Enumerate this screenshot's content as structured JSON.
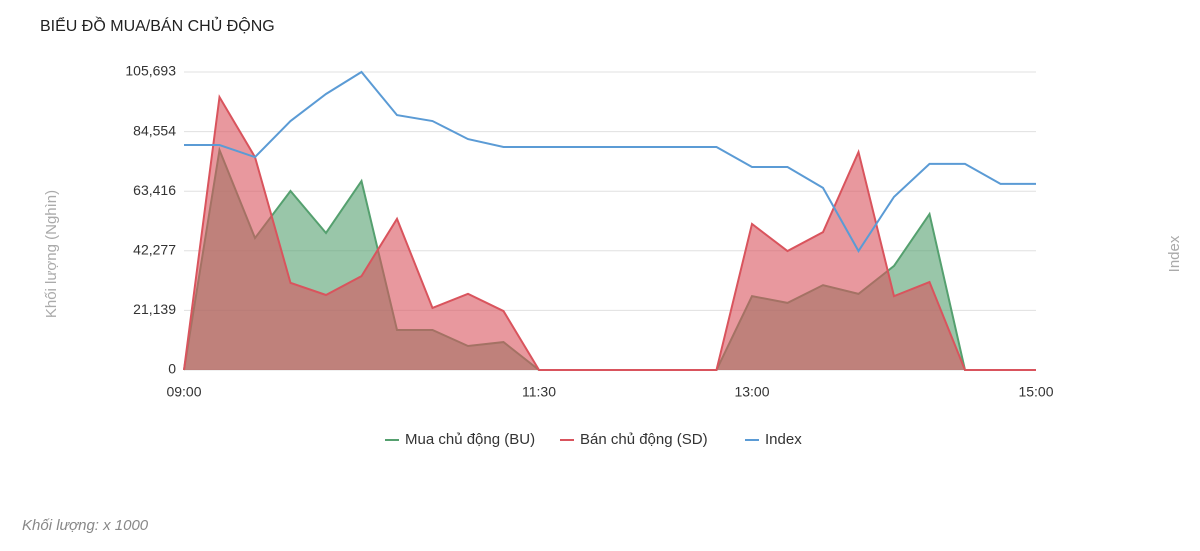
{
  "chart_data": {
    "type": "area",
    "title": "BIỂU ĐỒ MUA/BÁN CHỦ ĐỘNG",
    "y_label": "Khối lượng (Nghìn)",
    "y2_label": "Index",
    "footnote": "Khối lượng: x 1000",
    "categories": [
      "09:00",
      null,
      null,
      null,
      null,
      null,
      null,
      null,
      null,
      null,
      "11:30",
      null,
      null,
      null,
      null,
      null,
      "13:00",
      null,
      null,
      null,
      null,
      null,
      null,
      null,
      "15:00"
    ],
    "ylim": [
      0,
      105693
    ],
    "yticks": [
      0,
      {
        "value": 21139,
        "label": "21,139"
      },
      {
        "value": 42277,
        "label": "42,277"
      },
      {
        "value": 63416,
        "label": "63,416"
      },
      {
        "value": 84554,
        "label": "84,554"
      },
      {
        "value": 105693,
        "label": "105,693"
      }
    ],
    "grid": true,
    "series": [
      {
        "name": "Mua chủ động (BU)",
        "color": "#55a06f",
        "values": [
          0,
          78000,
          46800,
          63500,
          48600,
          67000,
          14200,
          14200,
          8500,
          9900,
          0,
          0,
          0,
          0,
          0,
          0,
          26200,
          23800,
          30100,
          27000,
          36900,
          55300,
          0,
          0,
          0
        ]
      },
      {
        "name": "Bán chủ động (SD)",
        "color": "#d9545d",
        "values": [
          0,
          96800,
          75500,
          30900,
          26600,
          33300,
          53600,
          22000,
          27000,
          20900,
          0,
          0,
          0,
          0,
          0,
          0,
          51800,
          42200,
          48900,
          77300,
          26200,
          31200,
          0,
          0,
          0
        ]
      },
      {
        "name": "Index",
        "color": "#5b9bd5",
        "line_only": true,
        "values": [
          79800,
          79800,
          75500,
          88300,
          97900,
          105700,
          90400,
          88300,
          81900,
          79100,
          79100,
          79100,
          79100,
          79100,
          79100,
          79100,
          72000,
          72000,
          64600,
          42200,
          61400,
          73100,
          73100,
          66000,
          66000
        ]
      }
    ]
  }
}
